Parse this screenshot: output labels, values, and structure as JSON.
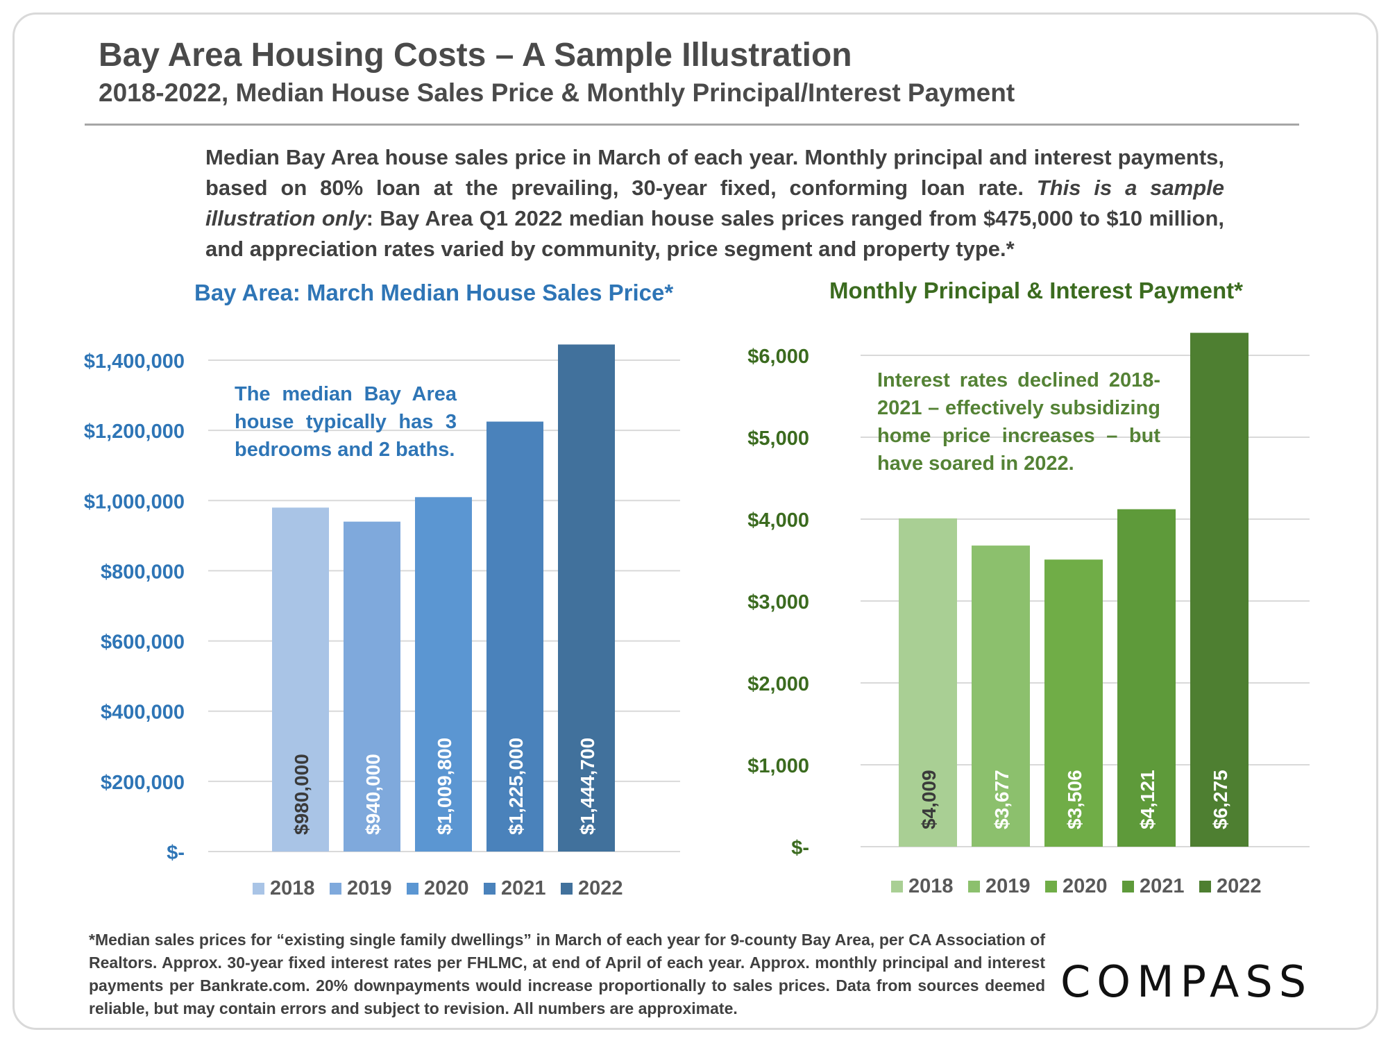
{
  "title": "Bay Area Housing Costs – A Sample Illustration",
  "subtitle": "2018-2022, Median House Sales Price & Monthly Principal/Interest Payment",
  "description": {
    "part1": "Median Bay Area house sales price in March of each year. Monthly principal and interest payments, based on 80% loan at the prevailing, 30-year fixed, conforming loan rate. ",
    "italic": "This is a sample illustration only",
    "part2": ": Bay Area Q1 2022 median house sales prices ranged from $475,000 to $10 million, and appreciation rates varied by community, price segment and property type.*"
  },
  "footnote": "*Median sales prices for “existing single family dwellings” in March of each year for 9-county Bay Area, per CA Association of Realtors. Approx. 30-year fixed interest rates per FHLMC, at end of April of each year. Approx. monthly principal and interest payments per Bankrate.com. 20% downpayments would increase proportionally to sales prices. Data from sources deemed reliable, but may contain errors and subject to revision. All numbers are approximate.",
  "logo": "COMPASS",
  "chart_data": [
    {
      "type": "bar",
      "title": "Bay Area: March Median House Sales Price*",
      "annotation": "The median Bay Area house typically has 3 bedrooms and 2 baths.",
      "categories": [
        "2018",
        "2019",
        "2020",
        "2021",
        "2022"
      ],
      "values": [
        980000,
        940000,
        1009800,
        1225000,
        1444700
      ],
      "data_labels": [
        "$980,000",
        "$940,000",
        "$1,009,800",
        "$1,225,000",
        "$1,444,700"
      ],
      "colors": [
        "#a9c4e6",
        "#7fa9dc",
        "#5b96d2",
        "#4a82bb",
        "#41719c"
      ],
      "yticks": [
        0,
        200000,
        400000,
        600000,
        800000,
        1000000,
        1200000,
        1400000
      ],
      "ytick_labels": [
        "$-",
        "$200,000",
        "$400,000",
        "$600,000",
        "$800,000",
        "$1,000,000",
        "$1,200,000",
        "$1,400,000"
      ],
      "ylim": [
        0,
        1400000
      ],
      "axis_color": "#2e75b6",
      "legend": "bottom",
      "grid": true
    },
    {
      "type": "bar",
      "title": "Monthly Principal & Interest Payment*",
      "annotation": "Interest rates declined 2018-2021 – effectively subsidizing home price increases – but have soared in 2022.",
      "categories": [
        "2018",
        "2019",
        "2020",
        "2021",
        "2022"
      ],
      "values": [
        4009,
        3677,
        3506,
        4121,
        6275
      ],
      "data_labels": [
        "$4,009",
        "$3,677",
        "$3,506",
        "$4,121",
        "$6,275"
      ],
      "colors": [
        "#a9cf94",
        "#8cc06d",
        "#70ad47",
        "#5e9a3a",
        "#4e7f31"
      ],
      "yticks": [
        0,
        1000,
        2000,
        3000,
        4000,
        5000,
        6000
      ],
      "ytick_labels": [
        "$-",
        "$1,000",
        "$2,000",
        "$3,000",
        "$4,000",
        "$5,000",
        "$6,000"
      ],
      "ylim": [
        0,
        6000
      ],
      "axis_color": "#3b6b1f",
      "legend": "bottom",
      "grid": true
    }
  ]
}
